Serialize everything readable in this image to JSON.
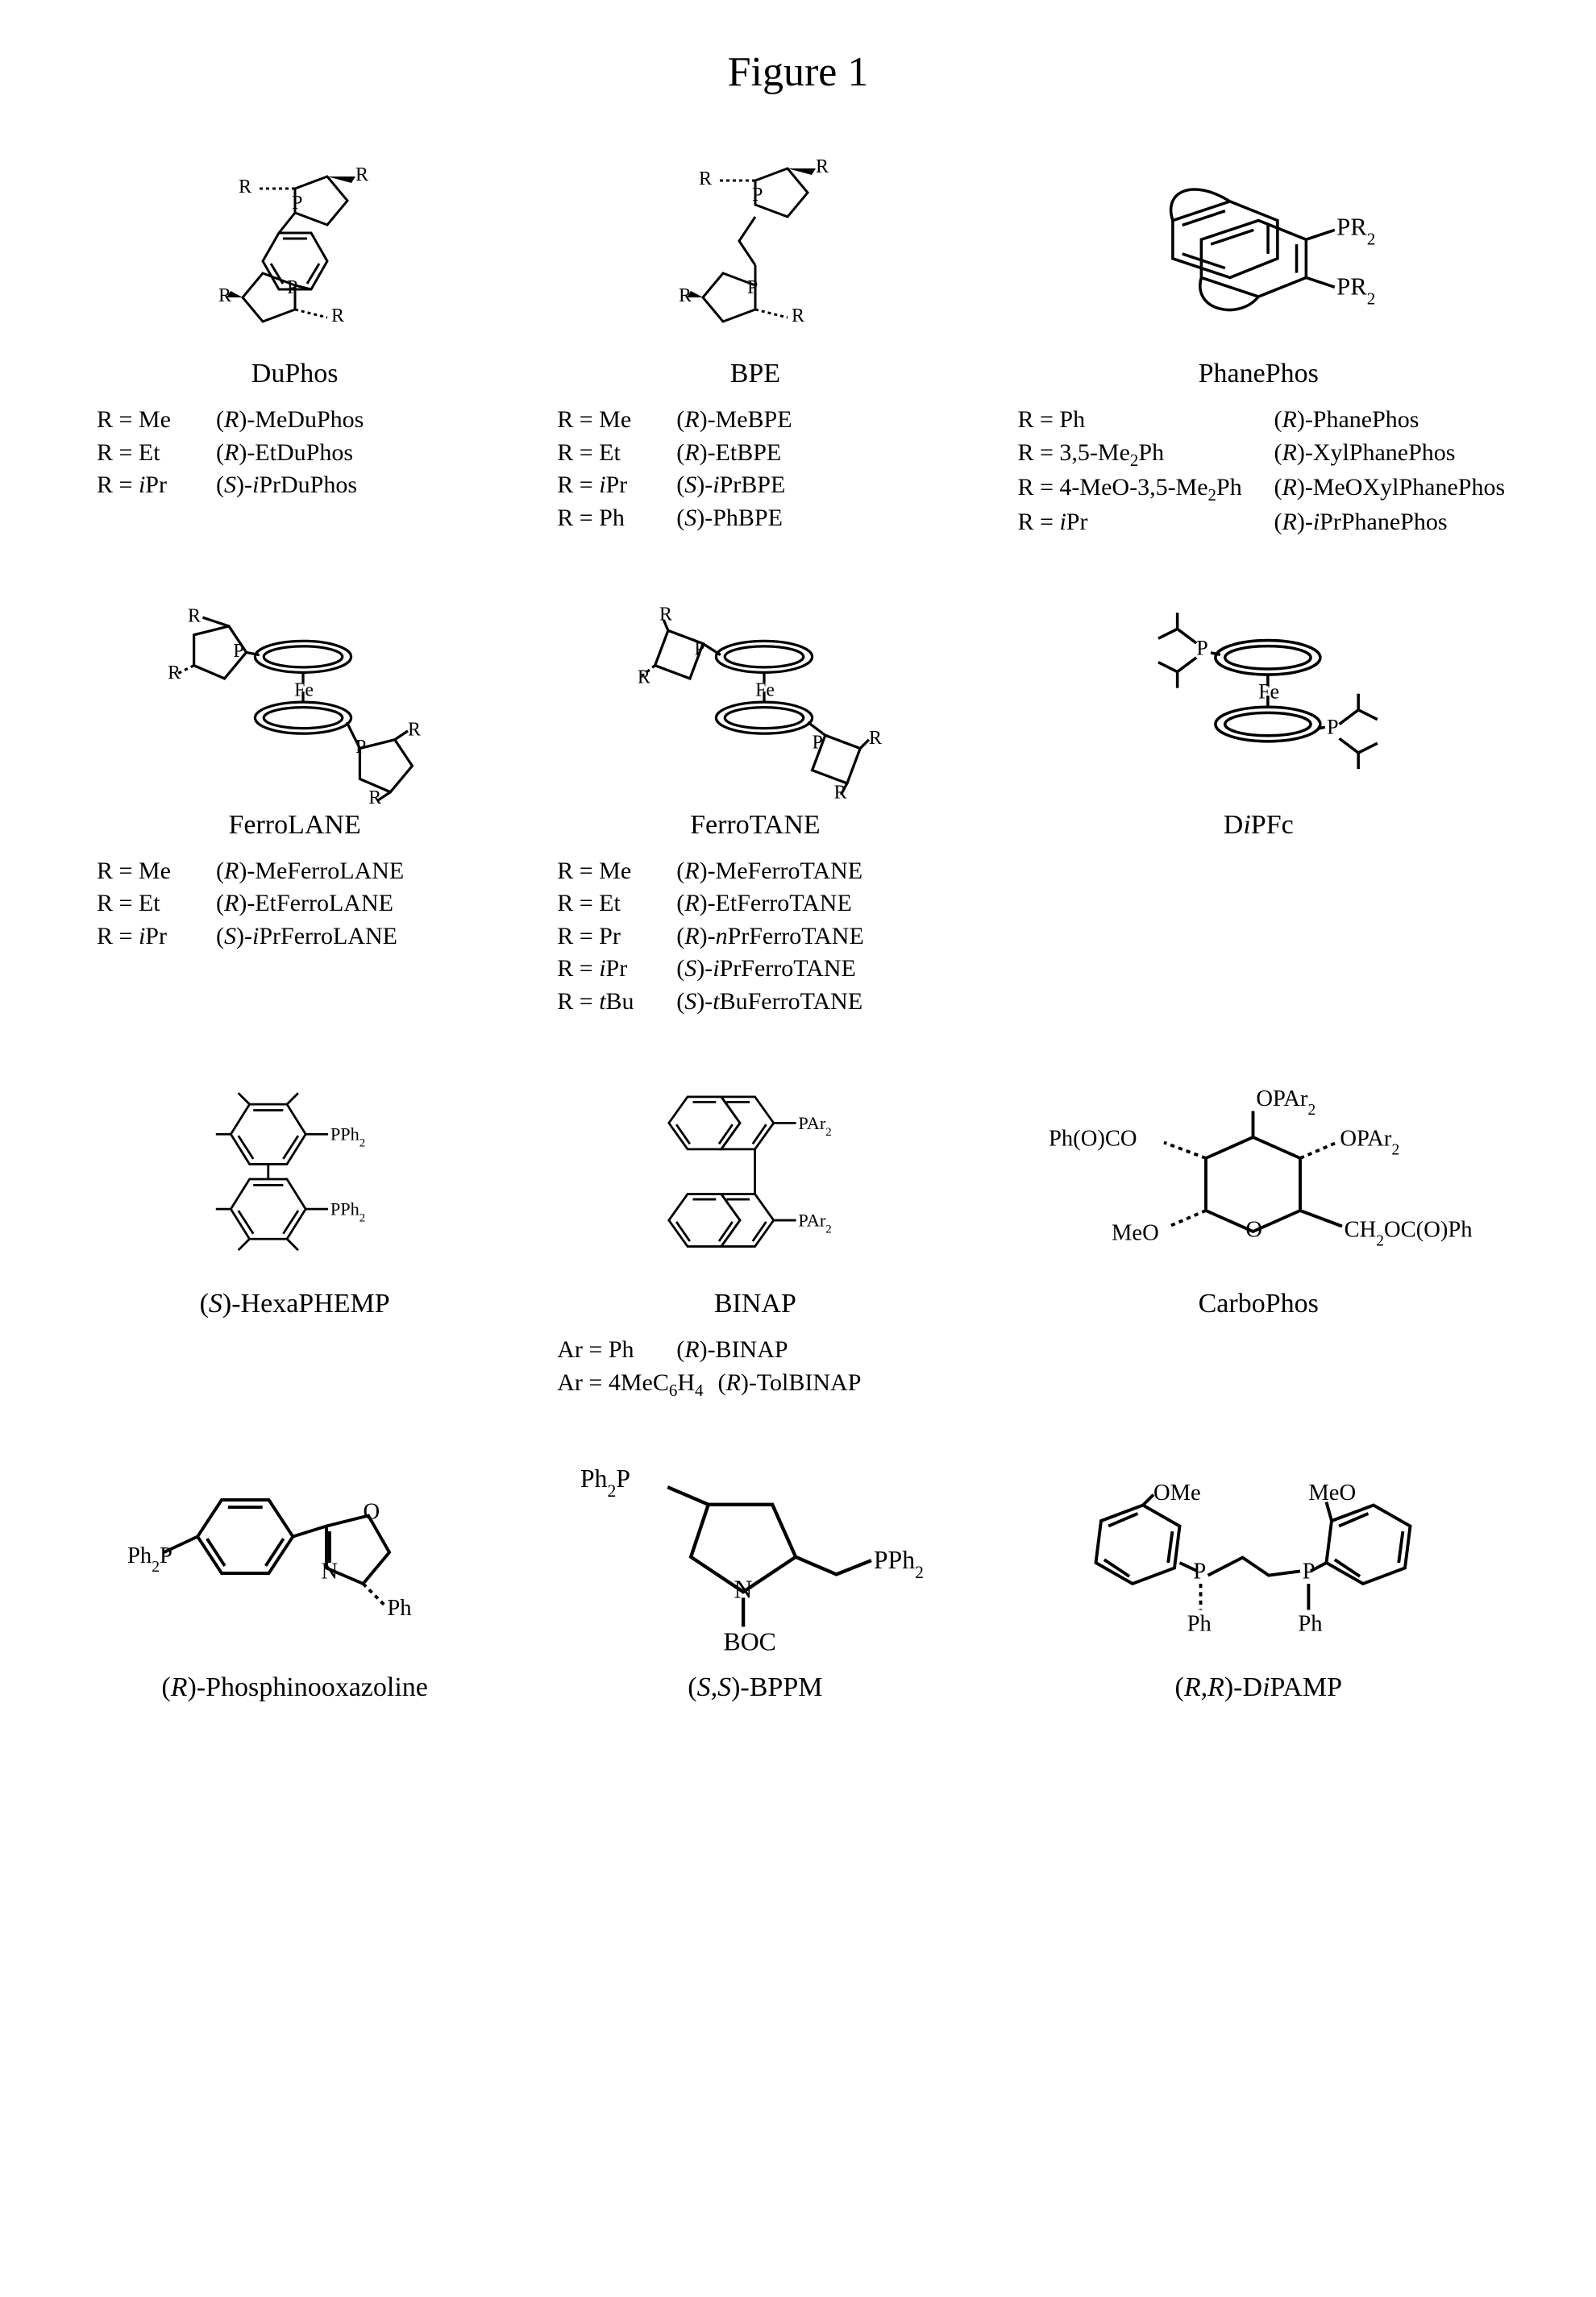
{
  "title": "Figure 1",
  "colors": {
    "fg": "#000000",
    "bg": "#ffffff"
  },
  "font": {
    "family": "Times New Roman",
    "title_size_pt": 40,
    "name_size_pt": 26,
    "table_size_pt": 22
  },
  "grid_cols": 3,
  "ligands": [
    {
      "name": "DuPhos",
      "name_html": "DuPhos",
      "structure": "duphos",
      "structure_labels": [
        "R",
        "R",
        "R",
        "R",
        "P",
        "P"
      ],
      "variants": [
        {
          "key": "R = Me",
          "key_html": "R = Me",
          "val": "(R)-MeDuPhos",
          "val_html": "(<i>R</i>)-MeDuPhos"
        },
        {
          "key": "R = Et",
          "key_html": "R = Et",
          "val": "(R)-EtDuPhos",
          "val_html": "(<i>R</i>)-EtDuPhos"
        },
        {
          "key": "R = iPr",
          "key_html": "R = <i>i</i>Pr",
          "val": "(S)-iPrDuPhos",
          "val_html": "(<i>S</i>)-<i>i</i>PrDuPhos"
        }
      ]
    },
    {
      "name": "BPE",
      "name_html": "BPE",
      "structure": "bpe",
      "structure_labels": [
        "R",
        "R",
        "R",
        "R",
        "P",
        "P"
      ],
      "variants": [
        {
          "key": "R = Me",
          "key_html": "R = Me",
          "val": "(R)-MeBPE",
          "val_html": "(<i>R</i>)-MeBPE"
        },
        {
          "key": "R = Et",
          "key_html": "R = Et",
          "val": "(R)-EtBPE",
          "val_html": "(<i>R</i>)-EtBPE"
        },
        {
          "key": "R = iPr",
          "key_html": "R = <i>i</i>Pr",
          "val": "(S)-iPrBPE",
          "val_html": "(<i>S</i>)-<i>i</i>PrBPE"
        },
        {
          "key": "R = Ph",
          "key_html": "R = Ph",
          "val": "(S)-PhBPE",
          "val_html": "(<i>S</i>)-PhBPE"
        }
      ]
    },
    {
      "name": "PhanePhos",
      "name_html": "PhanePhos",
      "structure": "phanephos",
      "structure_labels": [
        "PR2",
        "PR2"
      ],
      "variants_wide": true,
      "variants": [
        {
          "key": "R = Ph",
          "key_html": "R = Ph",
          "val": "(R)-PhanePhos",
          "val_html": "(<i>R</i>)-PhanePhos"
        },
        {
          "key": "R = 3,5-Me2Ph",
          "key_html": "R = 3,5-Me<sub>2</sub>Ph",
          "val": "(R)-XylPhanePhos",
          "val_html": "(<i>R</i>)-XylPhanePhos"
        },
        {
          "key": "R = 4-MeO-3,5-Me2Ph",
          "key_html": "R = 4-MeO-3,5-Me<sub>2</sub>Ph",
          "val": "(R)-MeOXylPhanePhos",
          "val_html": "(<i>R</i>)-MeOXylPhanePhos"
        },
        {
          "key": "R = iPr",
          "key_html": "R = <i>i</i>Pr",
          "val": "(R)-iPrPhanePhos",
          "val_html": "(<i>R</i>)-<i>i</i>PrPhanePhos"
        }
      ]
    },
    {
      "name": "FerroLANE",
      "name_html": "FerroLANE",
      "structure": "ferrolane",
      "structure_labels": [
        "R",
        "R",
        "R",
        "R",
        "P",
        "P",
        "Fe"
      ],
      "variants": [
        {
          "key": "R = Me",
          "key_html": "R = Me",
          "val": "(R)-MeFerroLANE",
          "val_html": "(<i>R</i>)-MeFerroLANE"
        },
        {
          "key": "R = Et",
          "key_html": "R = Et",
          "val": "(R)-EtFerroLANE",
          "val_html": "(<i>R</i>)-EtFerroLANE"
        },
        {
          "key": "R = iPr",
          "key_html": "R = <i>i</i>Pr",
          "val": "(S)-iPrFerroLANE",
          "val_html": "(<i>S</i>)-<i>i</i>PrFerroLANE"
        }
      ]
    },
    {
      "name": "FerroTANE",
      "name_html": "FerroTANE",
      "structure": "ferrotane",
      "structure_labels": [
        "R",
        "R",
        "R",
        "R",
        "P",
        "P",
        "Fe"
      ],
      "variants": [
        {
          "key": "R = Me",
          "key_html": "R = Me",
          "val": "(R)-MeFerroTANE",
          "val_html": "(<i>R</i>)-MeFerroTANE"
        },
        {
          "key": "R = Et",
          "key_html": "R = Et",
          "val": "(R)-EtFerroTANE",
          "val_html": "(<i>R</i>)-EtFerroTANE"
        },
        {
          "key": "R = Pr",
          "key_html": "R = Pr",
          "val": "(R)-nPrFerroTANE",
          "val_html": "(<i>R</i>)-<i>n</i>PrFerroTANE"
        },
        {
          "key": "R = iPr",
          "key_html": "R = <i>i</i>Pr",
          "val": "(S)-iPrFerroTANE",
          "val_html": "(<i>S</i>)-<i>i</i>PrFerroTANE"
        },
        {
          "key": "R = tBu",
          "key_html": "R = <i>t</i>Bu",
          "val": "(S)-tBuFerroTANE",
          "val_html": "(<i>S</i>)-<i>t</i>BuFerroTANE"
        }
      ]
    },
    {
      "name": "DiPFc",
      "name_html": "D<i>i</i>PFc",
      "structure": "dipfc",
      "structure_labels": [
        "P",
        "P",
        "Fe"
      ],
      "variants": []
    },
    {
      "name": "(S)-HexaPHEMP",
      "name_html": "(<i>S</i>)-HexaPHEMP",
      "structure": "hexaphemp",
      "structure_labels": [
        "PPh2",
        "PPh2"
      ],
      "variants": []
    },
    {
      "name": "BINAP",
      "name_html": "BINAP",
      "structure": "binap",
      "structure_labels": [
        "PAr2",
        "PAr2"
      ],
      "variants": [
        {
          "key": "Ar = Ph",
          "key_html": "Ar = Ph",
          "val": "(R)-BINAP",
          "val_html": "(<i>R</i>)-BINAP"
        },
        {
          "key": "Ar = 4MeC6H4",
          "key_html": "Ar = 4MeC<sub>6</sub>H<sub>4</sub>",
          "val": "(R)-TolBINAP",
          "val_html": "(<i>R</i>)-TolBINAP"
        }
      ]
    },
    {
      "name": "CarboPhos",
      "name_html": "CarboPhos",
      "structure": "carbophos",
      "structure_labels": [
        "OPAr2",
        "OPAr2",
        "Ph(O)CO",
        "MeO",
        "O",
        "CH2OC(O)Ph"
      ],
      "variants": []
    },
    {
      "name": "(R)-Phosphinooxazoline",
      "name_html": "(<i>R</i>)-Phosphinooxazoline",
      "structure": "phox",
      "structure_labels": [
        "Ph2P",
        "O",
        "N",
        "Ph"
      ],
      "variants": []
    },
    {
      "name": "(S,S)-BPPM",
      "name_html": "(<i>S,S</i>)-BPPM",
      "structure": "bppm",
      "structure_labels": [
        "Ph2P",
        "PPh2",
        "N",
        "BOC"
      ],
      "variants": []
    },
    {
      "name": "(R,R)-DiPAMP",
      "name_html": "(<i>R,R</i>)-D<i>i</i>PAMP",
      "structure": "dipamp",
      "structure_labels": [
        "OMe",
        "MeO",
        "P",
        "P",
        "Ph",
        "Ph"
      ],
      "variants": []
    }
  ]
}
